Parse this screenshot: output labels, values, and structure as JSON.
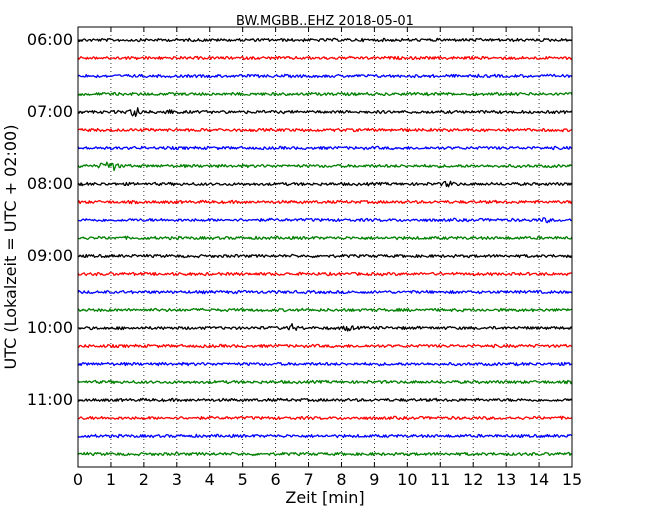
{
  "chart_data": {
    "type": "line",
    "title": "BW.MGBB..EHZ 2018-05-01",
    "xlabel": "Zeit  [min]",
    "ylabel": "UTC (Lokalzeit = UTC + 02:00)",
    "xlim": [
      0,
      15
    ],
    "x_ticks": [
      "0",
      "1",
      "2",
      "3",
      "4",
      "5",
      "6",
      "7",
      "8",
      "9",
      "10",
      "11",
      "12",
      "13",
      "14",
      "15"
    ],
    "y_tick_labels": [
      "06:00",
      "07:00",
      "08:00",
      "09:00",
      "10:00",
      "11:00"
    ],
    "grid": "vertical-dotted",
    "colors": [
      "#000000",
      "#ff0000",
      "#0000ff",
      "#008000"
    ],
    "traces": [
      {
        "start": "06:00",
        "color": "#000000",
        "events": []
      },
      {
        "start": "06:15",
        "color": "#ff0000",
        "events": []
      },
      {
        "start": "06:30",
        "color": "#0000ff",
        "events": []
      },
      {
        "start": "06:45",
        "color": "#008000",
        "events": []
      },
      {
        "start": "07:00",
        "color": "#000000",
        "events": [
          {
            "t": 1.75,
            "amp": 6
          },
          {
            "t": 2.7,
            "amp": 3
          }
        ]
      },
      {
        "start": "07:15",
        "color": "#ff0000",
        "events": []
      },
      {
        "start": "07:30",
        "color": "#0000ff",
        "events": []
      },
      {
        "start": "07:45",
        "color": "#008000",
        "events": [
          {
            "t": 0.85,
            "amp": 5
          },
          {
            "t": 1.1,
            "amp": 3
          }
        ]
      },
      {
        "start": "08:00",
        "color": "#000000",
        "events": [
          {
            "t": 11.25,
            "amp": 3
          }
        ]
      },
      {
        "start": "08:15",
        "color": "#ff0000",
        "events": []
      },
      {
        "start": "08:30",
        "color": "#0000ff",
        "events": [
          {
            "t": 14.2,
            "amp": 2
          }
        ]
      },
      {
        "start": "08:45",
        "color": "#008000",
        "events": []
      },
      {
        "start": "09:00",
        "color": "#000000",
        "events": []
      },
      {
        "start": "09:15",
        "color": "#ff0000",
        "events": []
      },
      {
        "start": "09:30",
        "color": "#0000ff",
        "events": []
      },
      {
        "start": "09:45",
        "color": "#008000",
        "events": []
      },
      {
        "start": "10:00",
        "color": "#000000",
        "events": [
          {
            "t": 6.5,
            "amp": 3
          },
          {
            "t": 8.2,
            "amp": 2.5
          }
        ]
      },
      {
        "start": "10:15",
        "color": "#ff0000",
        "events": []
      },
      {
        "start": "10:30",
        "color": "#0000ff",
        "events": []
      },
      {
        "start": "10:45",
        "color": "#008000",
        "events": []
      },
      {
        "start": "11:00",
        "color": "#000000",
        "events": []
      },
      {
        "start": "11:15",
        "color": "#ff0000",
        "events": []
      },
      {
        "start": "11:30",
        "color": "#0000ff",
        "events": []
      },
      {
        "start": "11:45",
        "color": "#008000",
        "events": []
      }
    ]
  }
}
